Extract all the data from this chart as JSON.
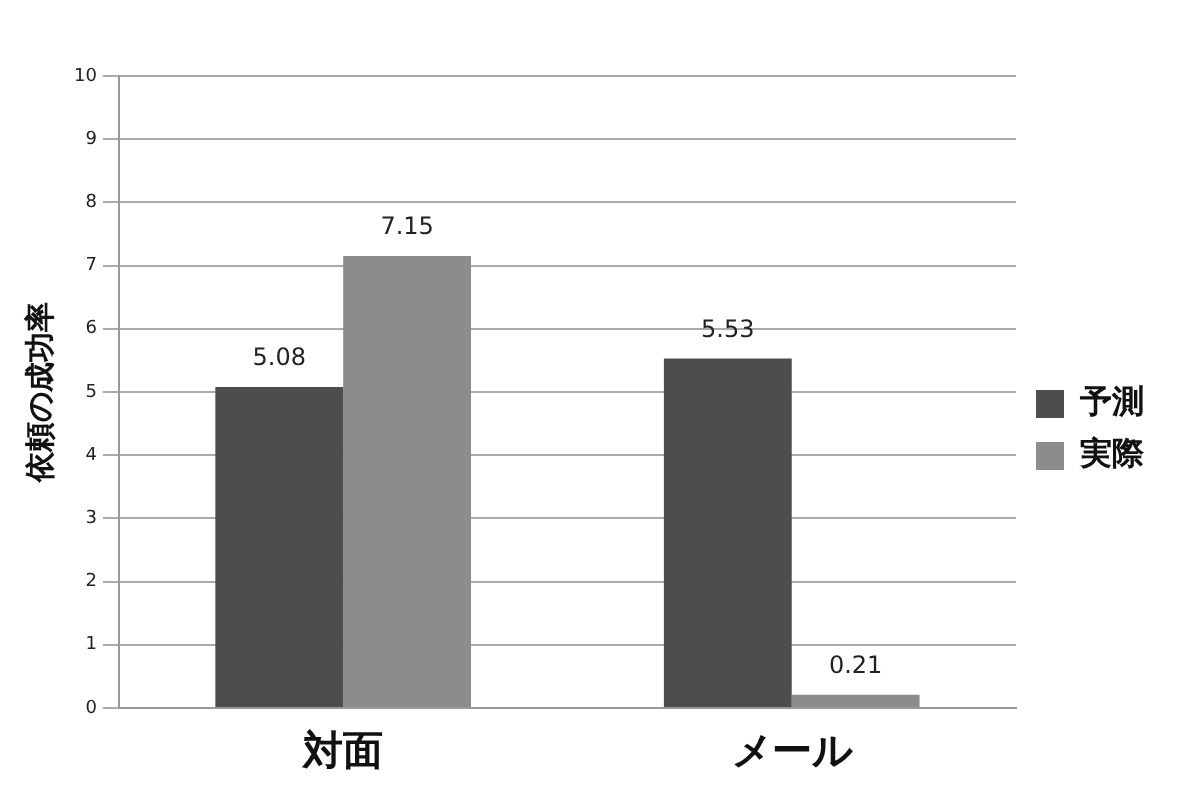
{
  "chart_data": {
    "type": "bar",
    "ylabel": "依頼の成功率",
    "categories": [
      "対面",
      "メール"
    ],
    "series": [
      {
        "name": "予測",
        "color": "#4d4d4d",
        "values": [
          5.08,
          5.53
        ]
      },
      {
        "name": "実際",
        "color": "#8c8c8c",
        "values": [
          7.15,
          0.21
        ]
      }
    ],
    "ylim": [
      0,
      10
    ],
    "yticks": [
      0,
      1,
      2,
      3,
      4,
      5,
      6,
      7,
      8,
      9,
      10
    ],
    "grid": "y",
    "legend": "right",
    "data_labels": true
  }
}
